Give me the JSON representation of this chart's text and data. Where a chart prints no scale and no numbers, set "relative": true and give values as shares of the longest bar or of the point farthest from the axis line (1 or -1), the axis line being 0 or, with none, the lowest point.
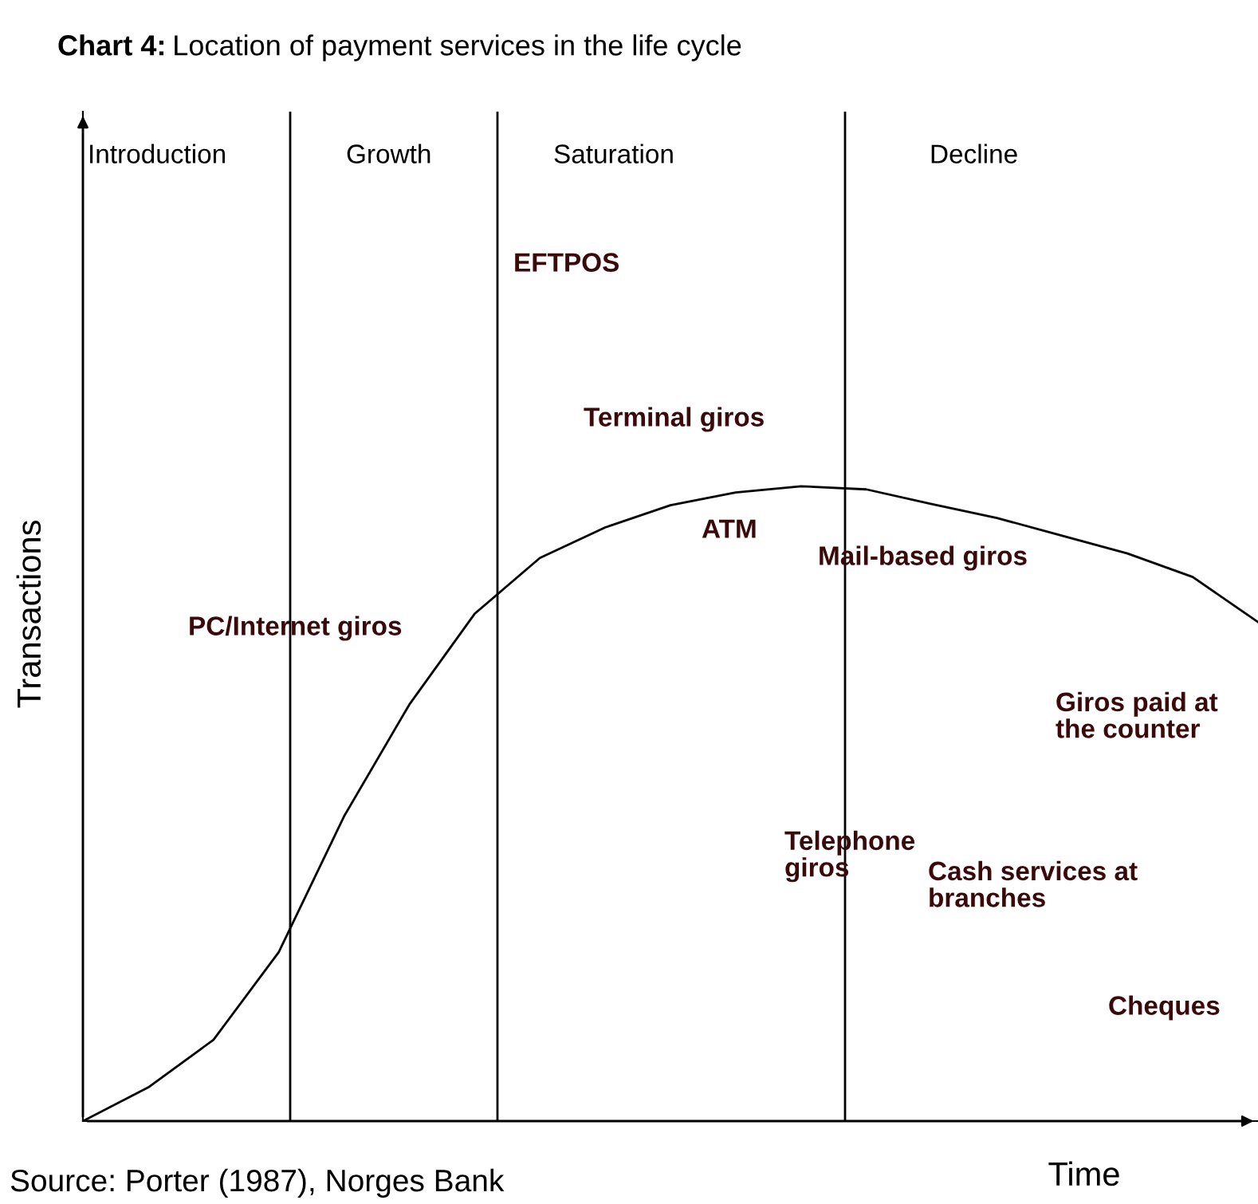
{
  "chart_data": {
    "type": "line",
    "title": "Chart 4: Location of payment services in the life cycle",
    "xlabel": "Time",
    "ylabel": "Transactions",
    "relative": true,
    "line_style": "solid",
    "categories": [
      null,
      null,
      null,
      null,
      null,
      null,
      null,
      null,
      null,
      null,
      null,
      null,
      null,
      null,
      null,
      null,
      null,
      null,
      null
    ],
    "series": [
      {
        "color": "#000000",
        "values": [
          0,
          0.053,
          0.128,
          0.266,
          0.48,
          0.656,
          0.799,
          0.887,
          0.935,
          0.97,
          0.99,
          1,
          0.995,
          0.972,
          0.95,
          0.922,
          0.894,
          0.857,
          0.786
        ]
      }
    ],
    "annotations": [
      "Introduction",
      "Growth",
      "Saturation",
      "Decline",
      "EFTPOS",
      "Terminal giros",
      "ATM",
      "Mail-based giros",
      "PC/Internet giros",
      "Giros paid at\nthe counter",
      "Telephone\ngiros",
      "Cash services at\nbranches",
      "Cheques",
      "Source: Porter (1987), Norges Bank"
    ]
  }
}
